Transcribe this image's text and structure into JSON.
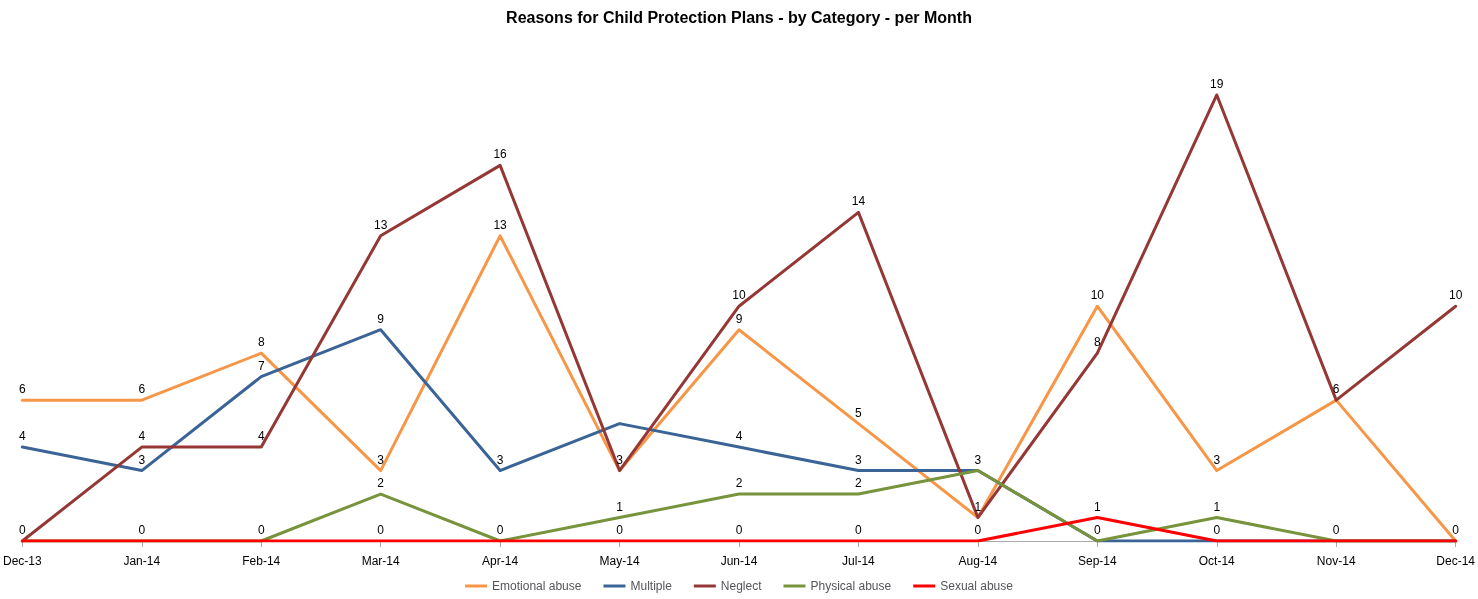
{
  "chart_data": {
    "type": "line",
    "title": "Reasons for Child Protection Plans - by Category - per Month",
    "categories": [
      "Dec-13",
      "Jan-14",
      "Feb-14",
      "Mar-14",
      "Apr-14",
      "May-14",
      "Jun-14",
      "Jul-14",
      "Aug-14",
      "Sep-14",
      "Oct-14",
      "Nov-14",
      "Dec-14"
    ],
    "series": [
      {
        "name": "Emotional abuse",
        "color": "#f79646",
        "values": [
          6,
          6,
          8,
          3,
          13,
          3,
          9,
          5,
          1,
          10,
          3,
          6,
          0
        ],
        "value_labels": [
          "6",
          "6",
          "8",
          "3",
          "13",
          "3",
          "9",
          "5",
          "1",
          "10",
          "3",
          "6",
          "0"
        ]
      },
      {
        "name": "Multiple",
        "color": "#3b6496",
        "values": [
          4,
          3,
          7,
          9,
          3,
          5,
          4,
          3,
          3,
          0,
          0,
          0,
          0
        ],
        "value_labels": [
          "4",
          "3",
          "7",
          "9",
          "3",
          null,
          "4",
          "3",
          "3",
          "0",
          "0",
          "0",
          null
        ]
      },
      {
        "name": "Neglect",
        "color": "#953735",
        "values": [
          0,
          4,
          4,
          13,
          16,
          3,
          10,
          14,
          1,
          8,
          19,
          6,
          10
        ],
        "value_labels": [
          "0",
          "4",
          "4",
          "13",
          "16",
          null,
          "10",
          "14",
          null,
          "8",
          "19",
          null,
          "10"
        ]
      },
      {
        "name": "Physical abuse",
        "color": "#77933c",
        "values": [
          0,
          0,
          0,
          2,
          0,
          1,
          2,
          2,
          3,
          0,
          1,
          0,
          0
        ],
        "value_labels": [
          null,
          "0",
          "0",
          "2",
          "0",
          "1",
          "2",
          "2",
          null,
          null,
          "1",
          null,
          null
        ]
      },
      {
        "name": "Sexual abuse",
        "color": "#ff0000",
        "values": [
          0,
          0,
          0,
          0,
          0,
          0,
          0,
          0,
          0,
          1,
          0,
          0,
          0
        ],
        "value_labels": [
          null,
          null,
          null,
          "0",
          null,
          "0",
          "0",
          "0",
          "0",
          "1",
          null,
          null,
          null
        ]
      }
    ],
    "legend": "bottom",
    "grid": false,
    "marker": "none",
    "line_style": "solid"
  }
}
